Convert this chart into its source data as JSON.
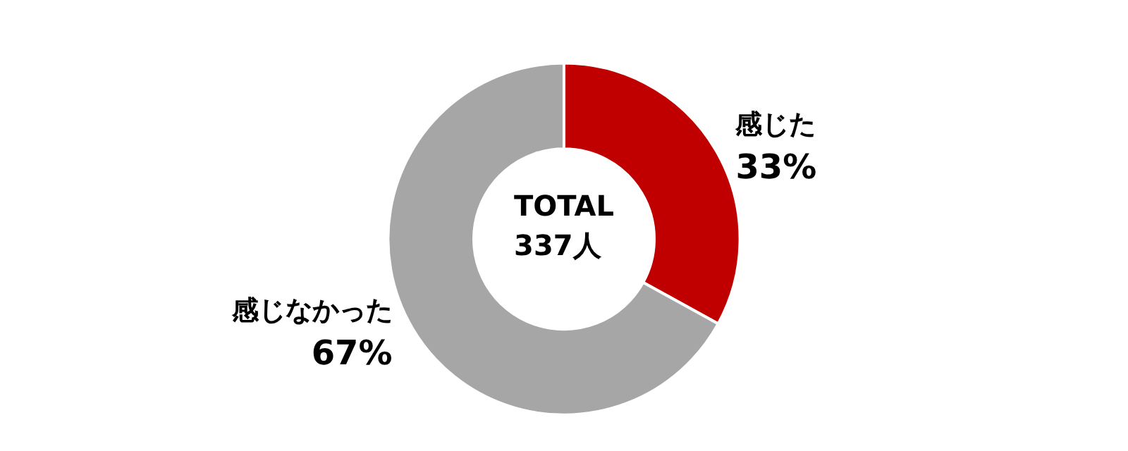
{
  "chart_data": {
    "type": "donut",
    "categories": [
      "感じた",
      "感じなかった"
    ],
    "values": [
      33,
      67
    ],
    "value_labels": [
      "33%",
      "67%"
    ],
    "colors": [
      "#c00000",
      "#a6a6a6"
    ],
    "annotations": [
      "TOTAL",
      "337人"
    ],
    "legend": false
  }
}
